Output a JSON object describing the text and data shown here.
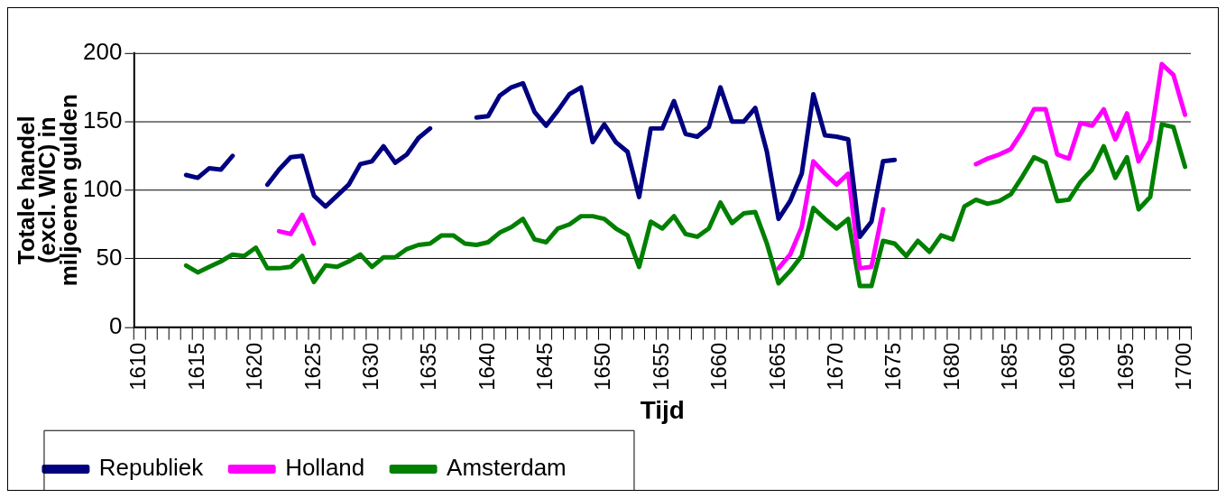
{
  "chart_data": {
    "type": "line",
    "xlabel": "Tijd",
    "ylabel": "Totale handel (excl. WIC) in miljoenen gulden",
    "categories": [
      "1610",
      null,
      null,
      null,
      null,
      "1615",
      null,
      null,
      null,
      null,
      "1620",
      null,
      null,
      null,
      null,
      "1625",
      null,
      null,
      null,
      null,
      "1630",
      null,
      null,
      null,
      null,
      "1635",
      null,
      null,
      null,
      null,
      "1640",
      null,
      null,
      null,
      null,
      "1645",
      null,
      null,
      null,
      null,
      "1650",
      null,
      null,
      null,
      null,
      "1655",
      null,
      null,
      null,
      null,
      "1660",
      null,
      null,
      null,
      null,
      "1665",
      null,
      null,
      null,
      null,
      "1670",
      null,
      null,
      null,
      null,
      "1675",
      null,
      null,
      null,
      null,
      "1680",
      null,
      null,
      null,
      null,
      "1685",
      null,
      null,
      null,
      null,
      "1690",
      null,
      null,
      null,
      null,
      "1695",
      null,
      null,
      null,
      null,
      "1700"
    ],
    "series": [
      {
        "name": "Republiek",
        "color": "#000080",
        "values": [
          null,
          null,
          null,
          null,
          111,
          109,
          116,
          115,
          125,
          null,
          null,
          104,
          115,
          124,
          125,
          96,
          88,
          96,
          104,
          119,
          121,
          132,
          120,
          126,
          138,
          145,
          null,
          null,
          null,
          153,
          154,
          169,
          175,
          178,
          157,
          147,
          158,
          170,
          175,
          135,
          148,
          135,
          128,
          95,
          145,
          145,
          165,
          141,
          139,
          146,
          175,
          150,
          150,
          160,
          128,
          79,
          92,
          112,
          170,
          140,
          139,
          137,
          66,
          77,
          121,
          122,
          null,
          null,
          null,
          null,
          null,
          null,
          null,
          null,
          null,
          null,
          null,
          null,
          null,
          null,
          null,
          null,
          null,
          null,
          null,
          null,
          null,
          null,
          null,
          null,
          null
        ]
      },
      {
        "name": "Holland",
        "color": "#ff00ff",
        "values": [
          null,
          null,
          null,
          null,
          null,
          null,
          null,
          null,
          null,
          null,
          null,
          null,
          70,
          68,
          82,
          61,
          null,
          null,
          null,
          null,
          null,
          null,
          null,
          null,
          null,
          null,
          null,
          null,
          null,
          null,
          null,
          null,
          null,
          null,
          null,
          null,
          null,
          null,
          null,
          null,
          null,
          null,
          null,
          null,
          null,
          null,
          null,
          null,
          null,
          null,
          null,
          null,
          null,
          null,
          null,
          43,
          53,
          73,
          121,
          112,
          104,
          112,
          43,
          44,
          86,
          null,
          null,
          null,
          null,
          null,
          null,
          null,
          119,
          123,
          126,
          130,
          143,
          159,
          159,
          126,
          123,
          149,
          147,
          159,
          137,
          156,
          121,
          136,
          192,
          184,
          155
        ]
      },
      {
        "name": "Amsterdam",
        "color": "#008000",
        "values": [
          null,
          null,
          null,
          null,
          45,
          40,
          44,
          48,
          53,
          52,
          58,
          43,
          43,
          44,
          52,
          33,
          45,
          44,
          48,
          53,
          44,
          51,
          51,
          57,
          60,
          61,
          67,
          67,
          61,
          60,
          62,
          69,
          73,
          79,
          64,
          62,
          72,
          75,
          81,
          81,
          79,
          72,
          67,
          44,
          77,
          72,
          81,
          68,
          66,
          72,
          91,
          76,
          83,
          84,
          61,
          32,
          41,
          52,
          87,
          79,
          72,
          79,
          30,
          30,
          63,
          61,
          52,
          63,
          55,
          67,
          64,
          88,
          93,
          90,
          92,
          97,
          110,
          124,
          120,
          92,
          93,
          106,
          115,
          132,
          109,
          124,
          86,
          95,
          148,
          146,
          117
        ]
      }
    ],
    "ylim": [
      0,
      200
    ],
    "yticks": [
      0,
      50,
      100,
      150,
      200
    ],
    "grid": "y",
    "legend": "bottom left",
    "marker": "none",
    "line_style": "solid"
  }
}
